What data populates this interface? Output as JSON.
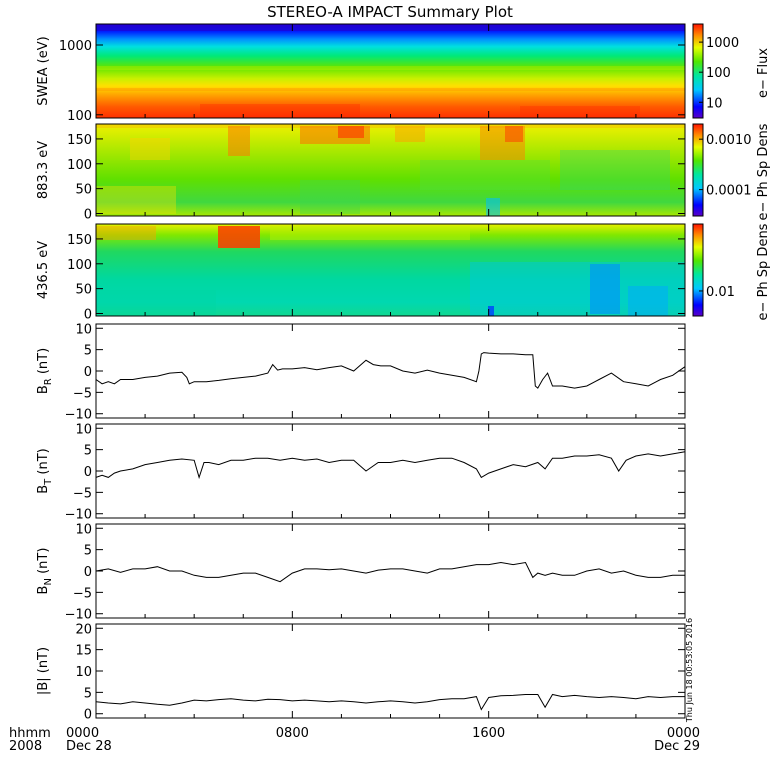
{
  "title": "STEREO-A IMPACT Summary Plot",
  "footer": {
    "hhmm": "hhmm",
    "year": "2008",
    "stamp": "Thu Jun 18 00:53:05 2016"
  },
  "x_axis": {
    "range_hours": [
      0,
      24
    ],
    "ticks": [
      {
        "hour": 0,
        "label": "0000",
        "sublabel": "Dec 28"
      },
      {
        "hour": 8,
        "label": "0800",
        "sublabel": ""
      },
      {
        "hour": 16,
        "label": "1600",
        "sublabel": ""
      },
      {
        "hour": 24,
        "label": "0000",
        "sublabel": "Dec 29"
      }
    ]
  },
  "chart_data": [
    {
      "name": "swea",
      "type": "heatmap",
      "ylabel": "SWEA (eV)",
      "y_scale": "log",
      "ylim": [
        90,
        2000
      ],
      "yticks": [
        {
          "value": 100,
          "label": "100"
        },
        {
          "value": 1000,
          "label": "1000"
        }
      ],
      "colorbar": {
        "label": "e− Flux",
        "scale": "log",
        "range": [
          3,
          4000
        ],
        "ticks": [
          {
            "value": 10,
            "label": "10"
          },
          {
            "value": 100,
            "label": "100"
          },
          {
            "value": 1000,
            "label": "1000"
          }
        ]
      }
    },
    {
      "name": "pad883",
      "type": "heatmap",
      "ylabel": "883.3 eV",
      "ylim": [
        -5,
        180
      ],
      "yticks": [
        {
          "value": 0,
          "label": "0"
        },
        {
          "value": 50,
          "label": "50"
        },
        {
          "value": 100,
          "label": "100"
        },
        {
          "value": 150,
          "label": "150"
        }
      ],
      "colorbar": {
        "label": "e− Ph Sp Dens",
        "scale": "log",
        "range": [
          3e-05,
          0.002
        ],
        "ticks": [
          {
            "value": 0.0001,
            "label": "0.0001"
          },
          {
            "value": 0.001,
            "label": "0.0010"
          }
        ]
      }
    },
    {
      "name": "pad436",
      "type": "heatmap",
      "ylabel": "436.5 eV",
      "ylim": [
        -5,
        180
      ],
      "yticks": [
        {
          "value": 0,
          "label": "0"
        },
        {
          "value": 50,
          "label": "50"
        },
        {
          "value": 100,
          "label": "100"
        },
        {
          "value": 150,
          "label": "150"
        }
      ],
      "colorbar": {
        "label": "e− Ph Sp Dens",
        "scale": "log",
        "range": [
          0.003,
          0.25
        ],
        "ticks": [
          {
            "value": 0.01,
            "label": "0.01"
          }
        ]
      }
    },
    {
      "name": "br",
      "type": "line",
      "ylabel": "B",
      "ylabel_sub": "R",
      "ylabel_unit": " (nT)",
      "ylim": [
        -11,
        11
      ],
      "yticks": [
        {
          "value": -10,
          "label": "−10"
        },
        {
          "value": -5,
          "label": "−5"
        },
        {
          "value": 0,
          "label": "0"
        },
        {
          "value": 5,
          "label": "5"
        },
        {
          "value": 10,
          "label": "10"
        }
      ],
      "x": [
        0,
        0.25,
        0.5,
        0.75,
        1,
        1.5,
        2,
        2.5,
        3,
        3.5,
        3.7,
        3.8,
        4,
        4.5,
        5,
        5.5,
        6,
        6.5,
        7,
        7.2,
        7.4,
        7.6,
        8,
        8.5,
        9,
        9.5,
        10,
        10.5,
        11,
        11.3,
        11.6,
        12,
        12.5,
        13,
        13.5,
        14,
        14.5,
        15,
        15.5,
        15.6,
        15.7,
        15.8,
        16,
        16.5,
        17,
        17.5,
        17.8,
        17.9,
        18,
        18.2,
        18.4,
        18.6,
        19,
        19.5,
        20,
        20.5,
        21,
        21.5,
        22,
        22.5,
        23,
        23.5,
        24
      ],
      "values": [
        -2,
        -3,
        -2.5,
        -3,
        -2,
        -2,
        -1.5,
        -1.2,
        -0.5,
        -0.3,
        -1.5,
        -3,
        -2.5,
        -2.5,
        -2.2,
        -1.8,
        -1.5,
        -1.2,
        -0.5,
        1.5,
        0.2,
        0.5,
        0.5,
        0.8,
        0.3,
        0.8,
        1.2,
        0,
        2.5,
        1.5,
        1.2,
        1.2,
        0,
        -0.5,
        0.2,
        -0.5,
        -1,
        -1.5,
        -2.5,
        0,
        4,
        4.3,
        4.2,
        4,
        4,
        3.8,
        3.8,
        -3.5,
        -4,
        -2,
        -0.5,
        -3.5,
        -3.5,
        -4,
        -3.5,
        -2,
        -0.5,
        -2.5,
        -3,
        -3.5,
        -2,
        -1,
        1
      ]
    },
    {
      "name": "bt",
      "type": "line",
      "ylabel": "B",
      "ylabel_sub": "T",
      "ylabel_unit": " (nT)",
      "ylim": [
        -11,
        11
      ],
      "yticks": [
        {
          "value": -10,
          "label": "−10"
        },
        {
          "value": -5,
          "label": "−5"
        },
        {
          "value": 0,
          "label": "0"
        },
        {
          "value": 5,
          "label": "5"
        },
        {
          "value": 10,
          "label": "10"
        }
      ],
      "x": [
        0,
        0.25,
        0.5,
        0.75,
        1,
        1.5,
        2,
        2.5,
        3,
        3.5,
        4,
        4.2,
        4.4,
        4.6,
        5,
        5.5,
        6,
        6.5,
        7,
        7.5,
        8,
        8.5,
        9,
        9.5,
        10,
        10.5,
        11,
        11.5,
        12,
        12.5,
        13,
        13.5,
        14,
        14.5,
        15,
        15.5,
        15.7,
        16,
        16.5,
        17,
        17.5,
        18,
        18.3,
        18.6,
        19,
        19.5,
        20,
        20.5,
        21,
        21.3,
        21.6,
        22,
        22.5,
        23,
        23.5,
        24
      ],
      "values": [
        -1.5,
        -1,
        -1.5,
        -0.5,
        0,
        0.5,
        1.5,
        2,
        2.5,
        2.8,
        2.5,
        -1.5,
        2,
        2,
        1.5,
        2.5,
        2.5,
        3,
        3,
        2.5,
        3,
        2.5,
        2.8,
        2,
        2.5,
        2.5,
        0,
        2,
        2,
        2.5,
        2,
        2.5,
        3,
        3,
        2,
        0.5,
        -1.5,
        -0.5,
        0.5,
        1.5,
        1,
        2,
        0.5,
        3,
        3,
        3.5,
        3.5,
        3.8,
        3,
        0,
        2.5,
        3.5,
        4,
        3.5,
        4,
        4.5
      ]
    },
    {
      "name": "bn",
      "type": "line",
      "ylabel": "B",
      "ylabel_sub": "N",
      "ylabel_unit": " (nT)",
      "ylim": [
        -11,
        11
      ],
      "yticks": [
        {
          "value": -10,
          "label": "−10"
        },
        {
          "value": -5,
          "label": "−5"
        },
        {
          "value": 0,
          "label": "0"
        },
        {
          "value": 5,
          "label": "5"
        },
        {
          "value": 10,
          "label": "10"
        }
      ],
      "x": [
        0,
        0.5,
        1,
        1.5,
        2,
        2.5,
        3,
        3.5,
        4,
        4.5,
        5,
        5.5,
        6,
        6.5,
        7,
        7.5,
        8,
        8.5,
        9,
        9.5,
        10,
        10.5,
        11,
        11.5,
        12,
        12.5,
        13,
        13.5,
        14,
        14.5,
        15,
        15.5,
        16,
        16.5,
        17,
        17.5,
        17.8,
        18,
        18.3,
        18.6,
        19,
        19.5,
        20,
        20.5,
        21,
        21.5,
        22,
        22.5,
        23,
        23.5,
        24
      ],
      "values": [
        0,
        0.5,
        -0.3,
        0.5,
        0.5,
        1,
        0,
        0,
        -1,
        -1.5,
        -1.5,
        -1,
        -0.5,
        -0.5,
        -1.5,
        -2.5,
        -0.5,
        0.5,
        0.5,
        0.3,
        0.5,
        0,
        -0.5,
        0.2,
        0.5,
        0.5,
        0,
        -0.5,
        0.5,
        0.5,
        1,
        1.5,
        1.5,
        2,
        1.5,
        2,
        -1.5,
        -0.5,
        -1,
        -0.5,
        -1,
        -1,
        0,
        0.5,
        -0.5,
        0,
        -1,
        -1.5,
        -1.5,
        -1,
        -1
      ]
    },
    {
      "name": "bmag",
      "type": "line",
      "ylabel": "|B| (nT)",
      "ylim": [
        -1,
        21
      ],
      "yticks": [
        {
          "value": 0,
          "label": "0"
        },
        {
          "value": 5,
          "label": "5"
        },
        {
          "value": 10,
          "label": "10"
        },
        {
          "value": 15,
          "label": "15"
        },
        {
          "value": 20,
          "label": "20"
        }
      ],
      "x": [
        0,
        0.5,
        1,
        1.5,
        2,
        2.5,
        3,
        3.5,
        4,
        4.5,
        5,
        5.5,
        6,
        6.5,
        7,
        7.5,
        8,
        8.5,
        9,
        9.5,
        10,
        10.5,
        11,
        11.5,
        12,
        12.5,
        13,
        13.5,
        14,
        14.5,
        15,
        15.5,
        15.7,
        16,
        16.5,
        17,
        17.5,
        18,
        18.3,
        18.6,
        19,
        19.5,
        20,
        20.5,
        21,
        21.5,
        22,
        22.5,
        23,
        23.5,
        24
      ],
      "values": [
        2.8,
        2.5,
        2.3,
        2.8,
        2.5,
        2.2,
        2,
        2.5,
        3.2,
        3,
        3.3,
        3.5,
        3.2,
        3,
        3.4,
        3.3,
        3,
        3.2,
        3,
        2.8,
        3,
        2.8,
        2.5,
        2.8,
        3,
        2.8,
        2.5,
        2.8,
        3.3,
        3.5,
        3.5,
        4,
        1,
        3.8,
        4.2,
        4.3,
        4.5,
        4.5,
        1.5,
        4.5,
        4,
        4.3,
        4,
        3.8,
        4,
        3.8,
        3.5,
        4,
        3.8,
        4,
        4
      ]
    }
  ]
}
